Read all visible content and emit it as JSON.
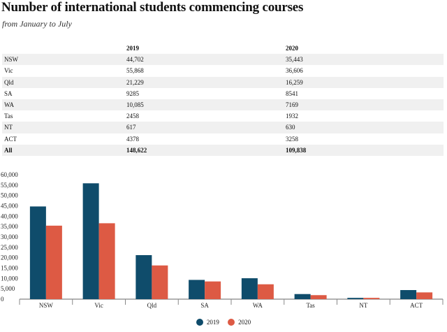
{
  "header": {
    "title": "Number of international students commencing courses",
    "subtitle": "from January to July"
  },
  "table": {
    "columns": [
      "",
      "2019",
      "2020"
    ],
    "rows": [
      [
        "NSW",
        "44,702",
        "35,443"
      ],
      [
        "Vic",
        "55,868",
        "36,606"
      ],
      [
        "Qld",
        "21,229",
        "16,259"
      ],
      [
        "SA",
        "9285",
        "8541"
      ],
      [
        "WA",
        "10,085",
        "7169"
      ],
      [
        "Tas",
        "2458",
        "1932"
      ],
      [
        "NT",
        "617",
        "630"
      ],
      [
        "ACT",
        "4378",
        "3258"
      ],
      [
        "All",
        "148,622",
        "109,838"
      ]
    ]
  },
  "chart_data": {
    "type": "bar",
    "title": "",
    "xlabel": "",
    "ylabel": "",
    "categories": [
      "NSW",
      "Vic",
      "Qld",
      "SA",
      "WA",
      "Tas",
      "NT",
      "ACT"
    ],
    "series": [
      {
        "name": "2019",
        "color": "#0f4c6b",
        "values": [
          44702,
          55868,
          21229,
          9285,
          10085,
          2458,
          617,
          4378
        ]
      },
      {
        "name": "2020",
        "color": "#dd5a44",
        "values": [
          35443,
          36606,
          16259,
          8541,
          7169,
          1932,
          630,
          3258
        ]
      }
    ],
    "ylim": [
      0,
      60000
    ],
    "yticks": [
      "0",
      "5,000",
      "10,000",
      "15,000",
      "20,000",
      "25,000",
      "30,000",
      "35,000",
      "40,000",
      "45,000",
      "50,000",
      "55,000",
      "60,000"
    ],
    "grid": false,
    "legend": "bottom-center"
  }
}
